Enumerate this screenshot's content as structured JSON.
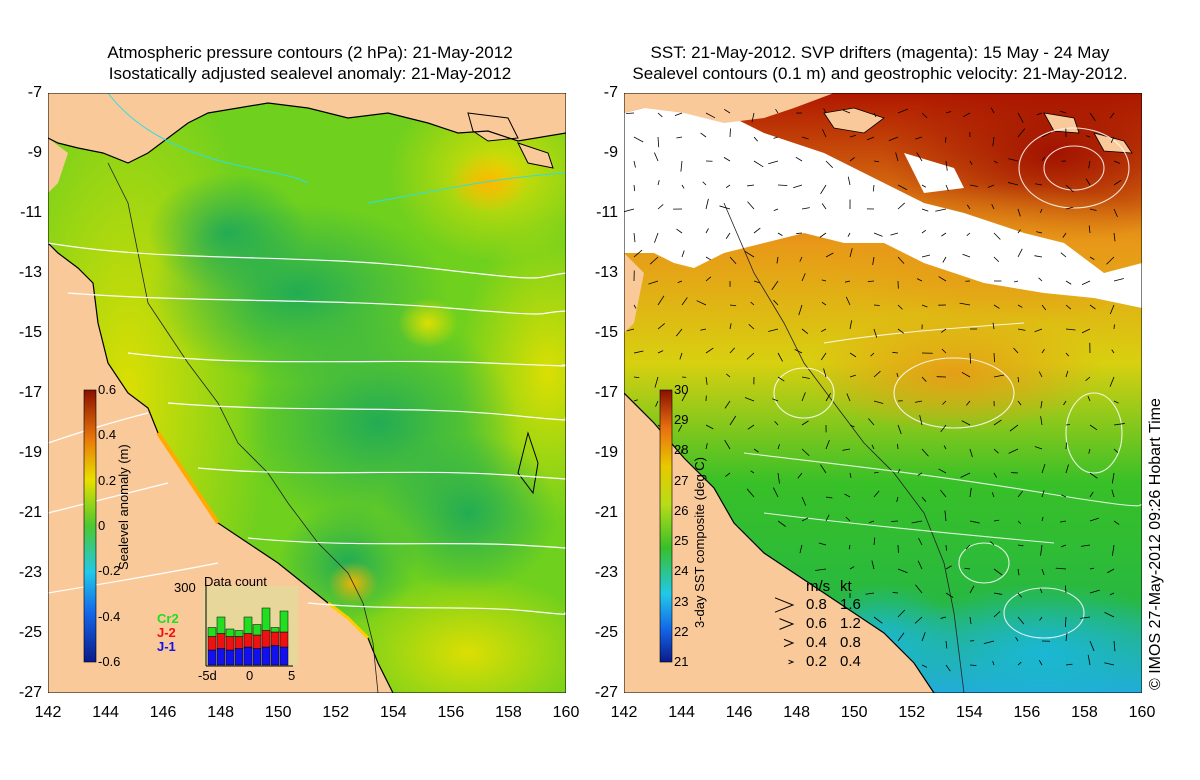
{
  "left_panel": {
    "title_line1": "Atmospheric pressure contours (2 hPa): 21-May-2012",
    "title_line2": "Isostatically adjusted sealevel anomaly: 21-May-2012",
    "colorbar": {
      "label": "Sealevel anomaly (m)",
      "ticks": [
        "0.6",
        "0.4",
        "0.2",
        "0",
        "-0.2",
        "-0.4",
        "-0.6"
      ]
    },
    "data_count": {
      "title": "Data count",
      "ymax_label": "300",
      "x_ticks": [
        "-5d",
        "0",
        "5"
      ],
      "legend": [
        {
          "name": "Cr2",
          "color": "#22dd22"
        },
        {
          "name": "J-2",
          "color": "#ee1111"
        },
        {
          "name": "J-1",
          "color": "#1111ee"
        }
      ],
      "bars": [
        {
          "blue": 0.2,
          "red": 0.18,
          "green": 0.12
        },
        {
          "blue": 0.22,
          "red": 0.2,
          "green": 0.22
        },
        {
          "blue": 0.2,
          "red": 0.18,
          "green": 0.1
        },
        {
          "blue": 0.22,
          "red": 0.16,
          "green": 0.08
        },
        {
          "blue": 0.24,
          "red": 0.18,
          "green": 0.22
        },
        {
          "blue": 0.22,
          "red": 0.18,
          "green": 0.14
        },
        {
          "blue": 0.24,
          "red": 0.22,
          "green": 0.3
        },
        {
          "blue": 0.26,
          "red": 0.18,
          "green": 0.06
        },
        {
          "blue": 0.24,
          "red": 0.2,
          "green": 0.28
        }
      ]
    }
  },
  "right_panel": {
    "title_line1": "SST: 21-May-2012. SVP drifters (magenta): 15 May - 24 May",
    "title_line2": "Sealevel contours (0.1 m) and geostrophic velocity: 21-May-2012.",
    "colorbar": {
      "label": "3-day SST composite (deg C)",
      "ticks": [
        "30",
        "29",
        "28",
        "27",
        "26",
        "25",
        "24",
        "23",
        "22",
        "21"
      ]
    },
    "velocity_legend": {
      "header_ms": "m/s",
      "header_kt": "kt",
      "rows": [
        {
          "ms": "0.8",
          "kt": "1.6",
          "scale": 1.0
        },
        {
          "ms": "0.6",
          "kt": "1.2",
          "scale": 0.75
        },
        {
          "ms": "0.4",
          "kt": "0.8",
          "scale": 0.5
        },
        {
          "ms": "0.2",
          "kt": "0.4",
          "scale": 0.25
        }
      ]
    }
  },
  "axes": {
    "y_ticks": [
      "-7",
      "-9",
      "-11",
      "-13",
      "-15",
      "-17",
      "-19",
      "-21",
      "-23",
      "-25",
      "-27"
    ],
    "x_ticks": [
      "142",
      "144",
      "146",
      "148",
      "150",
      "152",
      "154",
      "156",
      "158",
      "160"
    ]
  },
  "copyright": "© IMOS 27-May-2012 09:26 Hobart Time",
  "colors": {
    "land": "#f9c99a",
    "sla_base": "#66cc22",
    "sst_cold": "#22aadd",
    "sst_warm": "#b01800"
  }
}
